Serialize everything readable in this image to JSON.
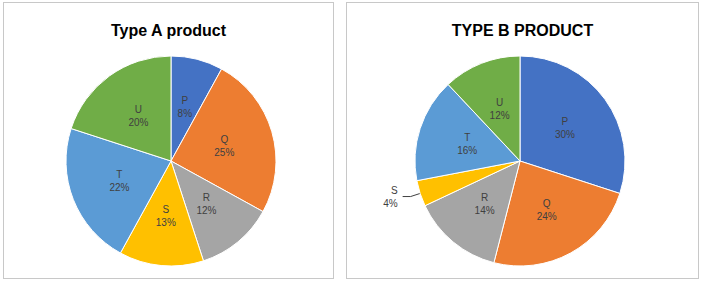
{
  "chart_data": [
    {
      "type": "pie",
      "title": "Type A product",
      "categories": [
        "P",
        "Q",
        "R",
        "S",
        "T",
        "U"
      ],
      "values": [
        8,
        25,
        12,
        13,
        22,
        20
      ],
      "value_labels": [
        "8%",
        "25%",
        "12%",
        "13%",
        "22%",
        "20%"
      ],
      "colors": [
        "#4472c4",
        "#ed7d31",
        "#a5a5a5",
        "#ffc000",
        "#5b9bd5",
        "#70ad47"
      ],
      "data_labels": true
    },
    {
      "type": "pie",
      "title": "TYPE B PRODUCT",
      "categories": [
        "P",
        "Q",
        "R",
        "S",
        "T",
        "U"
      ],
      "values": [
        30,
        24,
        14,
        4,
        16,
        12
      ],
      "value_labels": [
        "30%",
        "24%",
        "14%",
        "4%",
        "16%",
        "12%"
      ],
      "colors": [
        "#4472c4",
        "#ed7d31",
        "#a5a5a5",
        "#ffc000",
        "#5b9bd5",
        "#70ad47"
      ],
      "data_labels": true
    }
  ]
}
